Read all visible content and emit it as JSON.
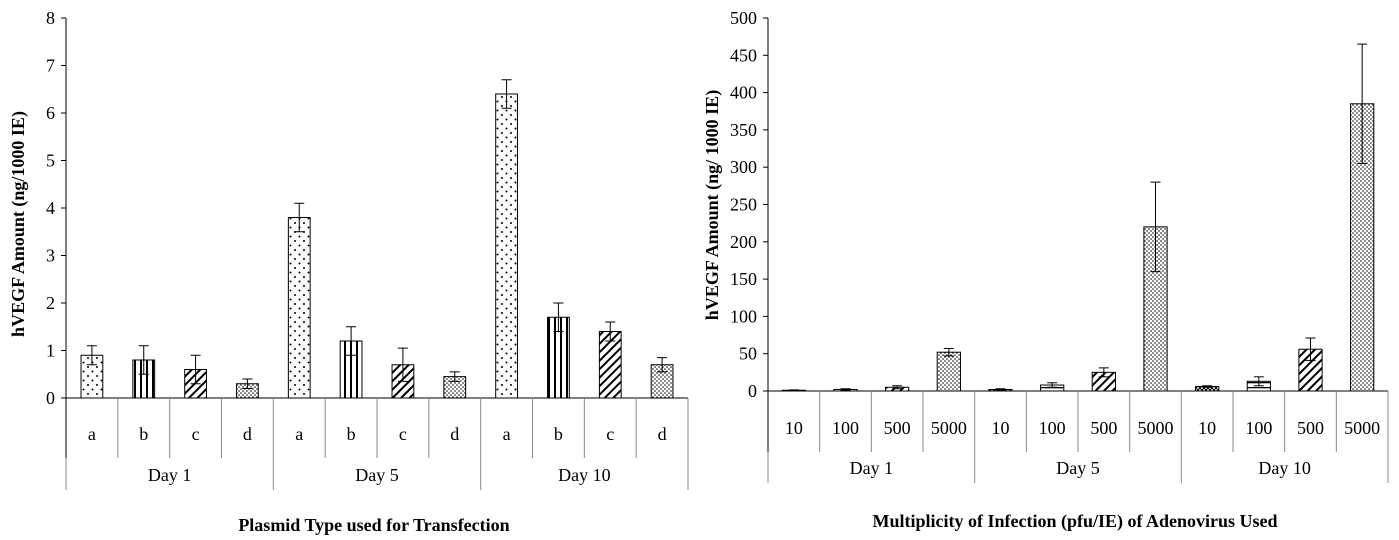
{
  "chart_data": [
    {
      "type": "bar",
      "title": "",
      "ylabel": "hVEGF Amount (ng/1000 IE)",
      "xlabel": "Plasmid Type used for Transfection",
      "ylim": [
        0,
        8
      ],
      "yticks": [
        0,
        1,
        2,
        3,
        4,
        5,
        6,
        7,
        8
      ],
      "grid": false,
      "legend": "none",
      "groups": [
        "Day 1",
        "Day 5",
        "Day 10"
      ],
      "categories": [
        "a",
        "b",
        "c",
        "d"
      ],
      "patterns": [
        "dots",
        "vertical",
        "diagonal",
        "dense-dots"
      ],
      "values": [
        [
          0.9,
          0.8,
          0.6,
          0.3
        ],
        [
          3.8,
          1.2,
          0.7,
          0.45
        ],
        [
          6.4,
          1.7,
          1.4,
          0.7
        ]
      ],
      "errors": [
        [
          0.2,
          0.3,
          0.3,
          0.1
        ],
        [
          0.3,
          0.3,
          0.35,
          0.1
        ],
        [
          0.3,
          0.3,
          0.2,
          0.15
        ]
      ]
    },
    {
      "type": "bar",
      "title": "",
      "ylabel": "hVEGF Amount (ng/ 1000 IE)",
      "xlabel": "Multiplicity of Infection (pfu/IE) of Adenovirus Used",
      "ylim": [
        0,
        500
      ],
      "yticks": [
        0,
        50,
        100,
        150,
        200,
        250,
        300,
        350,
        400,
        450,
        500
      ],
      "grid": false,
      "legend": "none",
      "groups": [
        "Day 1",
        "Day 5",
        "Day 10"
      ],
      "categories": [
        "10",
        "100",
        "500",
        "5000"
      ],
      "patterns": [
        "crosshatch",
        "horizontal",
        "diagonal",
        "dense-dots"
      ],
      "values": [
        [
          1,
          2,
          5,
          52
        ],
        [
          2,
          8,
          25,
          220
        ],
        [
          6,
          13,
          56,
          385
        ]
      ],
      "errors": [
        [
          0.5,
          1,
          2,
          5
        ],
        [
          1,
          3,
          6,
          60
        ],
        [
          1,
          6,
          15,
          80
        ]
      ]
    }
  ]
}
